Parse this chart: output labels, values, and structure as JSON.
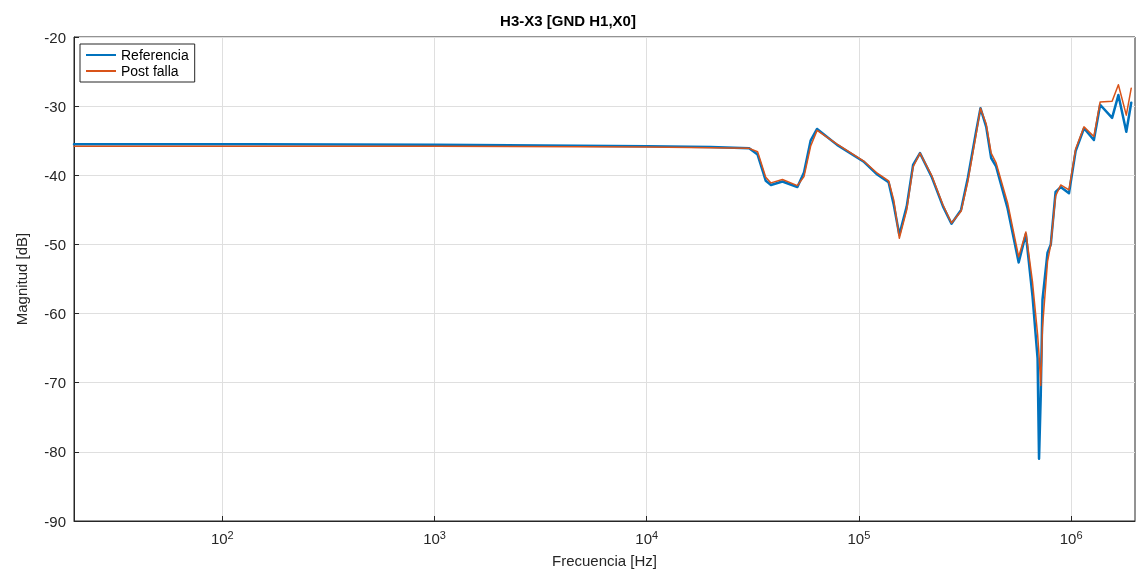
{
  "chart_data": {
    "type": "line",
    "title": "H3-X3 [GND H1,X0]",
    "xlabel": "Frecuencia [Hz]",
    "ylabel": "Magnitud [dB]",
    "x": [
      20,
      100,
      1000,
      10000,
      20000,
      30400,
      33300,
      36400,
      38500,
      43600,
      51300,
      55100,
      59200,
      63500,
      78900,
      105000,
      121000,
      138000,
      146000,
      155000,
      168000,
      180000,
      194000,
      220000,
      249000,
      273000,
      303000,
      326000,
      357000,
      374000,
      398000,
      420000,
      443000,
      502000,
      566000,
      612000,
      658000,
      695000,
      706000,
      719000,
      733000,
      774000,
      802000,
      845000,
      893000,
      977000,
      1050000,
      1150000,
      1280000,
      1370000,
      1560000,
      1670000,
      1820000,
      1920000
    ],
    "series": [
      {
        "name": "Referencia",
        "color": "#0072bd",
        "values": [
          -35.5,
          -35.5,
          -35.6,
          -35.8,
          -35.9,
          -36.1,
          -37.0,
          -40.8,
          -41.4,
          -40.9,
          -41.7,
          -39.6,
          -35.0,
          -33.3,
          -35.6,
          -38.0,
          -39.8,
          -41.0,
          -44.3,
          -48.6,
          -44.5,
          -38.5,
          -36.8,
          -40.2,
          -44.5,
          -47.0,
          -45.0,
          -40.4,
          -33.6,
          -30.3,
          -33.0,
          -37.5,
          -38.7,
          -44.8,
          -52.6,
          -48.5,
          -57.5,
          -66.5,
          -81.0,
          -72.0,
          -58.0,
          -51.2,
          -50.0,
          -42.4,
          -41.7,
          -42.6,
          -36.5,
          -33.2,
          -34.9,
          -29.8,
          -31.7,
          -28.4,
          -33.7,
          -29.5
        ]
      },
      {
        "name": "Post falla",
        "color": "#d95319",
        "values": [
          -35.8,
          -35.8,
          -35.8,
          -35.9,
          -36.0,
          -36.1,
          -36.6,
          -40.3,
          -41.1,
          -40.6,
          -41.5,
          -40.2,
          -35.8,
          -33.5,
          -35.5,
          -37.9,
          -39.6,
          -40.8,
          -43.6,
          -49.1,
          -45.0,
          -38.8,
          -36.8,
          -40.0,
          -44.3,
          -46.9,
          -45.2,
          -40.9,
          -34.0,
          -30.3,
          -32.6,
          -36.8,
          -38.2,
          -44.0,
          -51.8,
          -48.2,
          -55.5,
          -63.0,
          -66.0,
          -70.4,
          -62.0,
          -52.5,
          -50.0,
          -43.0,
          -41.4,
          -42.1,
          -36.2,
          -33.0,
          -34.4,
          -29.4,
          -29.3,
          -26.9,
          -31.3,
          -27.4
        ]
      }
    ],
    "xlim": [
      20,
      2000000
    ],
    "xticks": [
      {
        "value": 100,
        "label": "10$^{2}$"
      },
      {
        "value": 1000,
        "label": "10$^{3}$"
      },
      {
        "value": 10000,
        "label": "10$^{4}$"
      },
      {
        "value": 100000,
        "label": "10$^{5}$"
      },
      {
        "value": 1000000,
        "label": "10$^{6}$"
      }
    ],
    "ylim": [
      -90,
      -20
    ],
    "yticks": [
      -90,
      -80,
      -70,
      -60,
      -50,
      -40,
      -30,
      -20
    ],
    "log": "x",
    "grid": true,
    "legend": "top left",
    "marker": "none",
    "line_style": "solid"
  }
}
